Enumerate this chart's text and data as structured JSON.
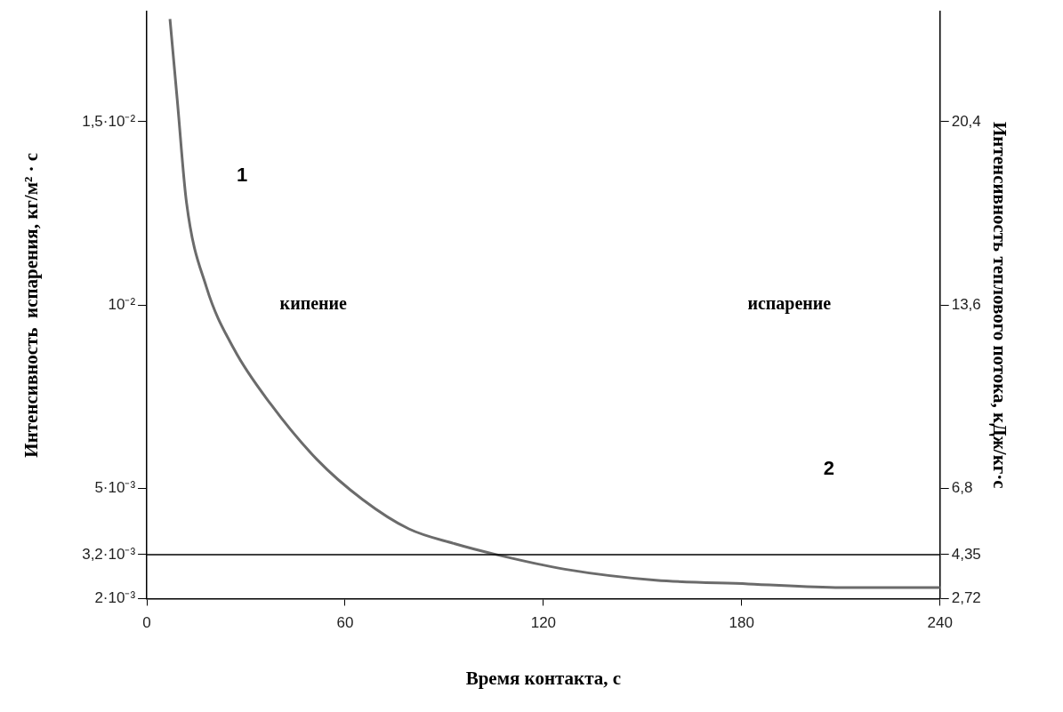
{
  "chart_data": {
    "type": "line",
    "xlabel": "Время контакта, с",
    "ylabel": "Интенсивность  испарения, кг/м² · с",
    "y2label": "Интенсивность теплового потока, кДж/кг·с",
    "x": [
      7,
      9.2,
      12,
      18,
      26.4,
      37.5,
      51.4,
      65.3,
      79.3,
      93,
      105.7,
      126.5,
      154,
      182,
      210,
      240
    ],
    "series": [
      {
        "color": "#6b6b6b",
        "values": [
          0.0178,
          0.0156,
          0.0128,
          0.0105,
          0.0088,
          0.0073,
          0.0058,
          0.0047,
          0.0039,
          0.0035,
          0.0032,
          0.0028,
          0.0025,
          0.0024,
          0.0023,
          0.0023
        ]
      }
    ],
    "xlim": [
      0,
      240
    ],
    "xticks": [
      0,
      60,
      120,
      180,
      240
    ],
    "ylim": [
      0.002,
      0.018
    ],
    "yticks": [
      {
        "value": 0.002,
        "label": "2·10⁻³"
      },
      {
        "value": 0.0032,
        "label": "3,2·10⁻³"
      },
      {
        "value": 0.005,
        "label": "5·10⁻³"
      },
      {
        "value": 0.01,
        "label": "10⁻²"
      },
      {
        "value": 0.015,
        "label": "1,5·10⁻²"
      }
    ],
    "y2lim": [
      2.72,
      24.48
    ],
    "y2ticks": [
      {
        "value": 2.72,
        "label": "2,72"
      },
      {
        "value": 4.35,
        "label": "4,35"
      },
      {
        "value": 6.8,
        "label": "6,8"
      },
      {
        "value": 13.6,
        "label": "13,6"
      },
      {
        "value": 20.4,
        "label": "20,4"
      }
    ],
    "ref_lines": [
      {
        "axis": "y",
        "value": 0.0032,
        "color": "#000000"
      }
    ],
    "annotations": [
      "1",
      "кипение",
      "испарение",
      "2"
    ],
    "grid": false,
    "legend": false,
    "marker": "none",
    "line_style": "solid"
  }
}
